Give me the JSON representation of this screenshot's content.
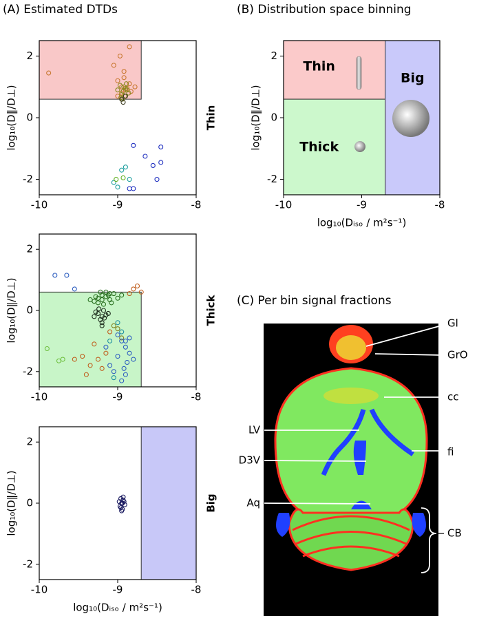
{
  "chart_data": [
    {
      "type": "scatter",
      "title": "(A) Estimated DTDs",
      "side_label": "Thin",
      "ylabel": "log₁₀(D‖/D⊥)",
      "xlim": [
        -10,
        -8
      ],
      "ylim": [
        -2.5,
        2.5
      ],
      "xticks": [
        -10,
        -9,
        -8
      ],
      "yticks": [
        -2,
        0,
        2
      ],
      "region": {
        "xlim": [
          -10,
          -8.7
        ],
        "ylim": [
          0.6,
          2.5
        ],
        "color": "#f9c8c8"
      },
      "series": [
        {
          "color": "#c87830",
          "x": [
            -8.95,
            -8.9,
            -9.0,
            -8.85,
            -8.95,
            -8.92,
            -9.05,
            -8.88,
            -8.97,
            -8.83,
            -9.88,
            -8.85,
            -8.92,
            -9.0,
            -8.78
          ],
          "values": [
            1.0,
            0.9,
            1.2,
            1.1,
            0.8,
            1.5,
            1.7,
            0.95,
            2.0,
            0.85,
            1.45,
            2.3,
            1.3,
            0.7,
            1.0
          ]
        },
        {
          "color": "#8a8a20",
          "x": [
            -8.93,
            -8.9,
            -8.95,
            -8.88,
            -8.97,
            -8.91,
            -8.86,
            -9.0,
            -8.94,
            -8.89,
            -8.96,
            -8.92
          ],
          "values": [
            0.85,
            0.95,
            0.75,
            0.9,
            1.05,
            0.7,
            0.8,
            0.9,
            0.6,
            1.1,
            0.65,
            1.0
          ]
        },
        {
          "color": "#3a3a20",
          "x": [
            -8.93,
            -8.9,
            -8.95
          ],
          "values": [
            0.5,
            0.7,
            0.6
          ]
        },
        {
          "color": "#2030c0",
          "x": [
            -8.8,
            -8.45,
            -8.65,
            -8.55,
            -8.45,
            -8.5,
            -8.8,
            -8.85
          ],
          "values": [
            -0.9,
            -0.95,
            -1.25,
            -1.55,
            -1.45,
            -2.0,
            -2.3,
            -2.3
          ]
        },
        {
          "color": "#20a0a0",
          "x": [
            -8.9,
            -8.95,
            -9.05,
            -8.85,
            -9.0
          ],
          "values": [
            -1.6,
            -1.7,
            -2.1,
            -2.0,
            -2.25
          ]
        },
        {
          "color": "#60b020",
          "x": [
            -9.02,
            -8.93
          ],
          "values": [
            -2.0,
            -1.95
          ]
        }
      ]
    },
    {
      "type": "scatter",
      "side_label": "Thick",
      "ylabel": "log₁₀(D‖/D⊥)",
      "xlim": [
        -10,
        -8
      ],
      "ylim": [
        -2.5,
        2.5
      ],
      "xticks": [
        -10,
        -9,
        -8
      ],
      "yticks": [
        -2,
        0,
        2
      ],
      "region": {
        "xlim": [
          -10,
          -8.7
        ],
        "ylim": [
          -2.5,
          0.6
        ],
        "color": "#c8f5c8"
      },
      "series": [
        {
          "color": "#2a7020",
          "x": [
            -9.25,
            -9.2,
            -9.15,
            -9.1,
            -9.05,
            -9.3,
            -9.22,
            -9.18,
            -9.12,
            -9.08,
            -9.28,
            -9.0,
            -9.35,
            -9.2,
            -9.15,
            -8.95,
            -9.1,
            -9.25
          ],
          "values": [
            0.4,
            0.5,
            0.45,
            0.35,
            0.55,
            0.3,
            0.6,
            0.2,
            0.5,
            0.25,
            0.45,
            0.4,
            0.35,
            0.35,
            0.6,
            0.5,
            0.55,
            0.25
          ]
        },
        {
          "color": "#203020",
          "x": [
            -9.25,
            -9.2,
            -9.18,
            -9.22,
            -9.15,
            -9.28,
            -9.2,
            -9.24,
            -9.17,
            -9.3,
            -9.12,
            -9.2
          ],
          "values": [
            -0.1,
            -0.2,
            0.0,
            -0.3,
            -0.15,
            -0.05,
            -0.4,
            0.05,
            -0.25,
            -0.2,
            -0.1,
            -0.5
          ]
        },
        {
          "color": "#c06020",
          "x": [
            -8.8,
            -8.75,
            -8.7,
            -8.85,
            -9.55,
            -9.45,
            -9.35,
            -9.25,
            -9.3,
            -9.4,
            -9.15,
            -9.1,
            -9.2
          ],
          "values": [
            0.7,
            0.8,
            0.6,
            0.55,
            -1.6,
            -1.5,
            -1.8,
            -1.6,
            -1.1,
            -2.1,
            -1.4,
            -0.7,
            -1.9
          ]
        },
        {
          "color": "#808020",
          "x": [
            -9.0,
            -8.95,
            -9.05
          ],
          "values": [
            -0.6,
            -0.9,
            -0.5
          ]
        },
        {
          "color": "#3060c0",
          "x": [
            -9.8,
            -9.65,
            -9.55,
            -9.0,
            -8.95,
            -8.9,
            -8.85,
            -9.0,
            -8.88,
            -8.92,
            -9.05,
            -8.8,
            -8.9,
            -9.1,
            -8.95,
            -8.85,
            -9.15,
            -8.9
          ],
          "values": [
            1.15,
            1.15,
            0.7,
            -0.8,
            -1.0,
            -1.2,
            -1.4,
            -1.5,
            -1.7,
            -1.9,
            -2.0,
            -1.6,
            -2.1,
            -1.8,
            -2.3,
            -0.9,
            -1.2,
            -1.0
          ]
        },
        {
          "color": "#2090a0",
          "x": [
            -9.0,
            -8.95,
            -9.1,
            -9.05
          ],
          "values": [
            -0.4,
            -0.7,
            -1.0,
            -2.2
          ]
        },
        {
          "color": "#70c040",
          "x": [
            -9.9,
            -9.75,
            -9.7
          ],
          "values": [
            -1.25,
            -1.65,
            -1.6
          ]
        }
      ]
    },
    {
      "type": "scatter",
      "side_label": "Big",
      "ylabel": "log₁₀(D‖/D⊥)",
      "xlabel": "log₁₀(Dᵢₛₒ / m²s⁻¹)",
      "xlim": [
        -10,
        -8
      ],
      "ylim": [
        -2.5,
        2.5
      ],
      "xticks": [
        -10,
        -9,
        -8
      ],
      "yticks": [
        -2,
        0,
        2
      ],
      "region": {
        "xlim": [
          -8.7,
          -8
        ],
        "ylim": [
          -2.5,
          2.5
        ],
        "color": "#c8c8f8"
      },
      "series": [
        {
          "color": "#1a1a60",
          "x": [
            -8.95,
            -8.93,
            -8.97,
            -8.92,
            -8.96,
            -8.94,
            -8.98,
            -8.91,
            -8.95,
            -8.93,
            -8.96,
            -8.94
          ],
          "values": [
            0.0,
            0.1,
            -0.1,
            0.05,
            0.15,
            -0.2,
            0.05,
            -0.05,
            -0.25,
            0.2,
            -0.15,
            0.0
          ]
        }
      ]
    },
    {
      "type": "bins",
      "title": "(B) Distribution space binning",
      "ylabel": "log₁₀(D‖/D⊥)",
      "xlabel": "log₁₀(Dᵢₛₒ / m²s⁻¹)",
      "xlim": [
        -10,
        -8
      ],
      "ylim": [
        -2.5,
        2.5
      ],
      "xticks": [
        -10,
        -9,
        -8
      ],
      "yticks": [
        -2,
        0,
        2
      ],
      "bins": [
        {
          "label": "Thin",
          "xlim": [
            -10,
            -8.7
          ],
          "ylim": [
            0.6,
            2.5
          ],
          "color": "#fbcaca",
          "label_color": "#e01010"
        },
        {
          "label": "Thick",
          "xlim": [
            -10,
            -8.7
          ],
          "ylim": [
            -2.5,
            0.6
          ],
          "color": "#ccf8cc",
          "label_color": "#30e030"
        },
        {
          "label": "Big",
          "xlim": [
            -8.7,
            -8
          ],
          "ylim": [
            -2.5,
            2.5
          ],
          "color": "#c9c9fa",
          "label_color": "#1010e0"
        }
      ]
    }
  ],
  "panel_c": {
    "title": "(C) Per bin signal fractions",
    "labels": [
      "Gl",
      "GrO",
      "cc",
      "LV",
      "D3V",
      "fi",
      "Aq",
      "CB"
    ]
  }
}
